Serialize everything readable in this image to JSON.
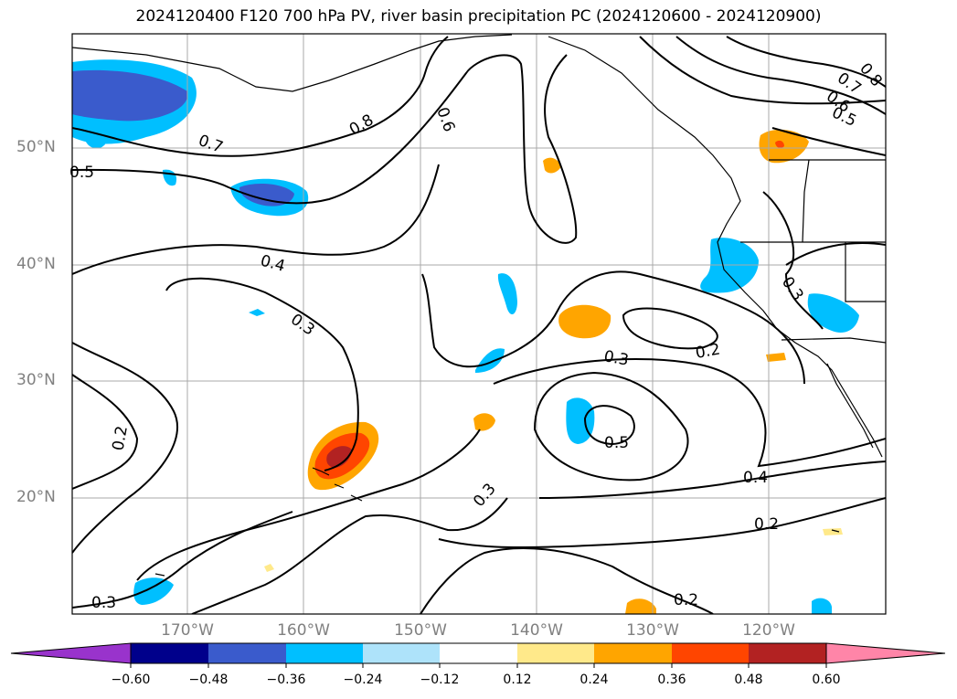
{
  "title": "2024120400 F120 700 hPa PV, river basin precipitation PC (2024120600 - 2024120900)",
  "lat_labels": [
    "50°N",
    "40°N",
    "30°N",
    "20°N"
  ],
  "lon_labels": [
    "170°W",
    "160°W",
    "150°W",
    "140°W",
    "130°W",
    "120°W"
  ],
  "contour_labels": [
    "0.8",
    "0.7",
    "0.5",
    "0.6",
    "0.4",
    "0.3",
    "0.2",
    "0.3",
    "0.2",
    "0.5",
    "0.3",
    "0.4",
    "0.2",
    "0.3",
    "0.2",
    "0.6",
    "0.7",
    "0.8",
    "0.5",
    "0.3"
  ],
  "colorbar": {
    "ticks": [
      "−0.60",
      "−0.48",
      "−0.36",
      "−0.24",
      "−0.12",
      "0.12",
      "0.24",
      "0.36",
      "0.48",
      "0.60"
    ],
    "colors": [
      "#9933cc",
      "#00008b",
      "#3a5bcc",
      "#00bfff",
      "#aee3fa",
      "#ffffff",
      "#ffe98a",
      "#ffa500",
      "#ff4500",
      "#b22222",
      "#ff85a8"
    ]
  },
  "colors": {
    "contour": "#000000",
    "grid": "#a9a9a9",
    "coast": "#000000",
    "axis_label": "#808080"
  }
}
